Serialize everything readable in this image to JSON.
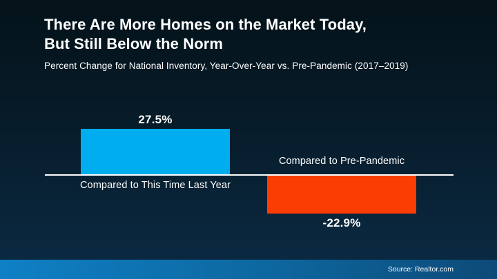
{
  "header": {
    "title_line1": "There Are More Homes on the Market Today,",
    "title_line2": "But Still Below the Norm",
    "subtitle": "Percent Change for National Inventory, Year-Over-Year vs. Pre-Pandemic (2017–2019)"
  },
  "chart_data": {
    "type": "bar",
    "title": "There Are More Homes on the Market Today, But Still Below the Norm",
    "subtitle": "Percent Change for National Inventory, Year-Over-Year vs. Pre-Pandemic (2017–2019)",
    "categories": [
      "Compared to This Time Last Year",
      "Compared to Pre-Pandemic"
    ],
    "values": [
      27.5,
      -22.9
    ],
    "value_labels": [
      "27.5%",
      "-22.9%"
    ],
    "bar_colors": [
      "#00AEEF",
      "#FB3D03"
    ],
    "baseline_value": 0,
    "ylim": [
      -30,
      35
    ],
    "grid": false,
    "legend": false
  },
  "footer": {
    "source": "Source: Realtor.com"
  },
  "colors": {
    "background_top": "#041219",
    "background_bottom": "#0B2B45",
    "bar_positive": "#00AEEF",
    "bar_negative": "#FB3D03",
    "baseline": "#FFFFFF",
    "footer_left": "#0F80C5",
    "footer_right": "#0D4A78",
    "text": "#FFFFFF"
  }
}
